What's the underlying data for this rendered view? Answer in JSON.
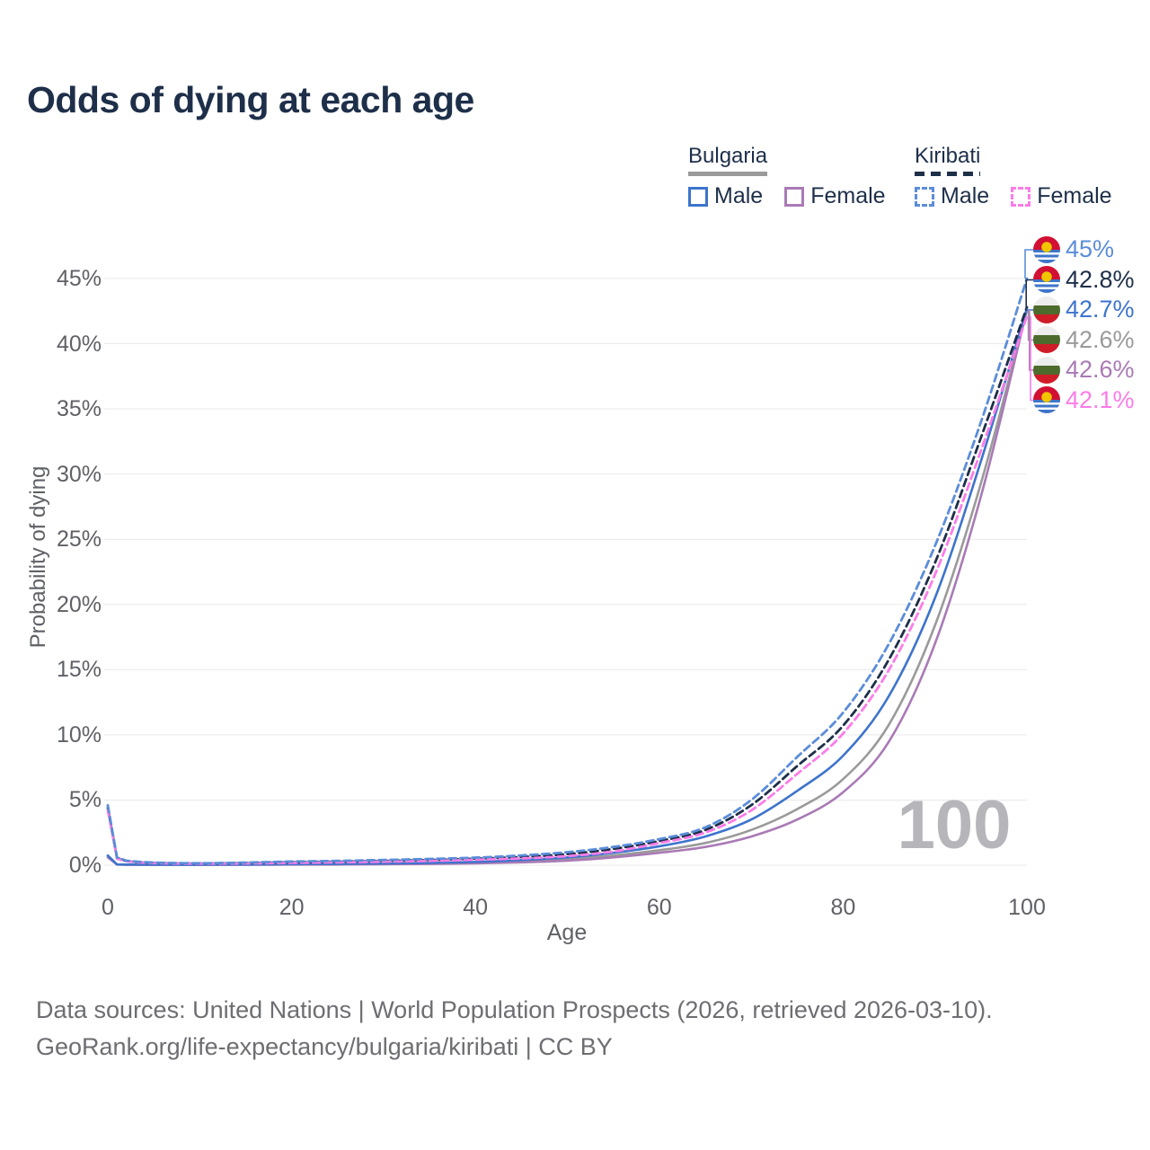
{
  "header": {
    "title": "Odds of dying at each age"
  },
  "legend": {
    "groups": [
      {
        "name": "Bulgaria",
        "line_key": "bg_both",
        "items": [
          {
            "label": "Male",
            "key": "bg_male"
          },
          {
            "label": "Female",
            "key": "bg_female"
          }
        ]
      },
      {
        "name": "Kiribati",
        "line_key": "ki_both",
        "items": [
          {
            "label": "Male",
            "key": "ki_male"
          },
          {
            "label": "Female",
            "key": "ki_female"
          }
        ]
      }
    ]
  },
  "axes": {
    "y_title": "Probability of dying",
    "x_title": "Age",
    "y_ticks": [
      {
        "v": 0,
        "label": "0%"
      },
      {
        "v": 5,
        "label": "5%"
      },
      {
        "v": 10,
        "label": "10%"
      },
      {
        "v": 15,
        "label": "15%"
      },
      {
        "v": 20,
        "label": "20%"
      },
      {
        "v": 25,
        "label": "25%"
      },
      {
        "v": 30,
        "label": "30%"
      },
      {
        "v": 35,
        "label": "35%"
      },
      {
        "v": 40,
        "label": "40%"
      },
      {
        "v": 45,
        "label": "45%"
      }
    ],
    "x_ticks": [
      {
        "v": 0,
        "label": "0"
      },
      {
        "v": 20,
        "label": "20"
      },
      {
        "v": 40,
        "label": "40"
      },
      {
        "v": 60,
        "label": "60"
      },
      {
        "v": 80,
        "label": "80"
      },
      {
        "v": 100,
        "label": "100"
      }
    ]
  },
  "watermark": {
    "text": "100"
  },
  "end_labels": [
    {
      "key": "ki_male",
      "flag": "ki",
      "text": "45%",
      "color": "#5b8dd9",
      "end_pct": 45.0
    },
    {
      "key": "ki_both",
      "flag": "ki",
      "text": "42.8%",
      "color": "#1e2f49",
      "end_pct": 42.8
    },
    {
      "key": "bg_male",
      "flag": "bg",
      "text": "42.7%",
      "color": "#3d74cc",
      "end_pct": 42.7
    },
    {
      "key": "bg_both",
      "flag": "bg",
      "text": "42.6%",
      "color": "#9a9a9a",
      "end_pct": 42.6
    },
    {
      "key": "bg_female",
      "flag": "bg",
      "text": "42.6%",
      "color": "#a97ab5",
      "end_pct": 42.6
    },
    {
      "key": "ki_female",
      "flag": "ki",
      "text": "42.1%",
      "color": "#fb7ce8",
      "end_pct": 42.1
    }
  ],
  "footer": {
    "line1": "Data sources: United Nations | World Population Prospects (2026, retrieved 2026-03-10).",
    "line2": "GeoRank.org/life-expectancy/bulgaria/kiribati | CC BY"
  },
  "chart_data": {
    "type": "line",
    "title": "Odds of dying at each age",
    "xlabel": "Age",
    "ylabel": "Probability of dying",
    "xlim": [
      0,
      100
    ],
    "ylim": [
      0,
      47
    ],
    "grid": "horizontal",
    "legend_position": "top-right",
    "x": [
      0,
      1,
      2,
      5,
      10,
      15,
      20,
      25,
      30,
      35,
      40,
      45,
      50,
      55,
      60,
      65,
      70,
      75,
      80,
      85,
      90,
      95,
      100
    ],
    "series": [
      {
        "key": "bg_both",
        "name": "Bulgaria (both sexes)",
        "color": "#9a9a9a",
        "dashed": false,
        "values": [
          0.68,
          0.055,
          0.04,
          0.03,
          0.03,
          0.04,
          0.06,
          0.08,
          0.1,
          0.14,
          0.2,
          0.3,
          0.47,
          0.75,
          1.15,
          1.7,
          2.7,
          4.3,
          6.6,
          10.8,
          18.4,
          29.3,
          42.6
        ]
      },
      {
        "key": "bg_female",
        "name": "Bulgaria Female",
        "color": "#a97ab5",
        "dashed": false,
        "values": [
          0.6,
          0.05,
          0.035,
          0.028,
          0.028,
          0.035,
          0.045,
          0.05,
          0.07,
          0.1,
          0.14,
          0.22,
          0.35,
          0.6,
          0.95,
          1.4,
          2.2,
          3.5,
          5.6,
          9.5,
          17.0,
          28.3,
          42.6
        ]
      },
      {
        "key": "bg_male",
        "name": "Bulgaria Male",
        "color": "#3d74cc",
        "dashed": false,
        "values": [
          0.75,
          0.06,
          0.045,
          0.035,
          0.035,
          0.05,
          0.08,
          0.1,
          0.13,
          0.18,
          0.25,
          0.4,
          0.6,
          0.95,
          1.45,
          2.2,
          3.5,
          5.7,
          8.4,
          13.0,
          20.5,
          31.0,
          42.7
        ]
      },
      {
        "key": "ki_both",
        "name": "Kiribati (both sexes)",
        "color": "#1e2f49",
        "dashed": true,
        "values": [
          4.4,
          0.55,
          0.32,
          0.18,
          0.14,
          0.17,
          0.23,
          0.27,
          0.33,
          0.4,
          0.5,
          0.63,
          0.85,
          1.25,
          1.85,
          2.7,
          4.6,
          7.6,
          10.7,
          15.8,
          23.2,
          32.8,
          42.8
        ]
      },
      {
        "key": "ki_female",
        "name": "Kiribati Female",
        "color": "#fb7ce8",
        "dashed": true,
        "values": [
          4.2,
          0.5,
          0.3,
          0.16,
          0.12,
          0.14,
          0.18,
          0.22,
          0.27,
          0.33,
          0.42,
          0.52,
          0.7,
          1.05,
          1.7,
          2.5,
          4.2,
          7.0,
          10.1,
          15.0,
          22.3,
          31.8,
          42.1
        ]
      },
      {
        "key": "ki_male",
        "name": "Kiribati Male",
        "color": "#5b8dd9",
        "dashed": true,
        "values": [
          4.6,
          0.6,
          0.35,
          0.2,
          0.15,
          0.2,
          0.28,
          0.33,
          0.4,
          0.48,
          0.58,
          0.75,
          1.0,
          1.4,
          2.0,
          2.9,
          5.0,
          8.3,
          11.7,
          17.0,
          24.5,
          34.0,
          45.0
        ]
      }
    ]
  }
}
